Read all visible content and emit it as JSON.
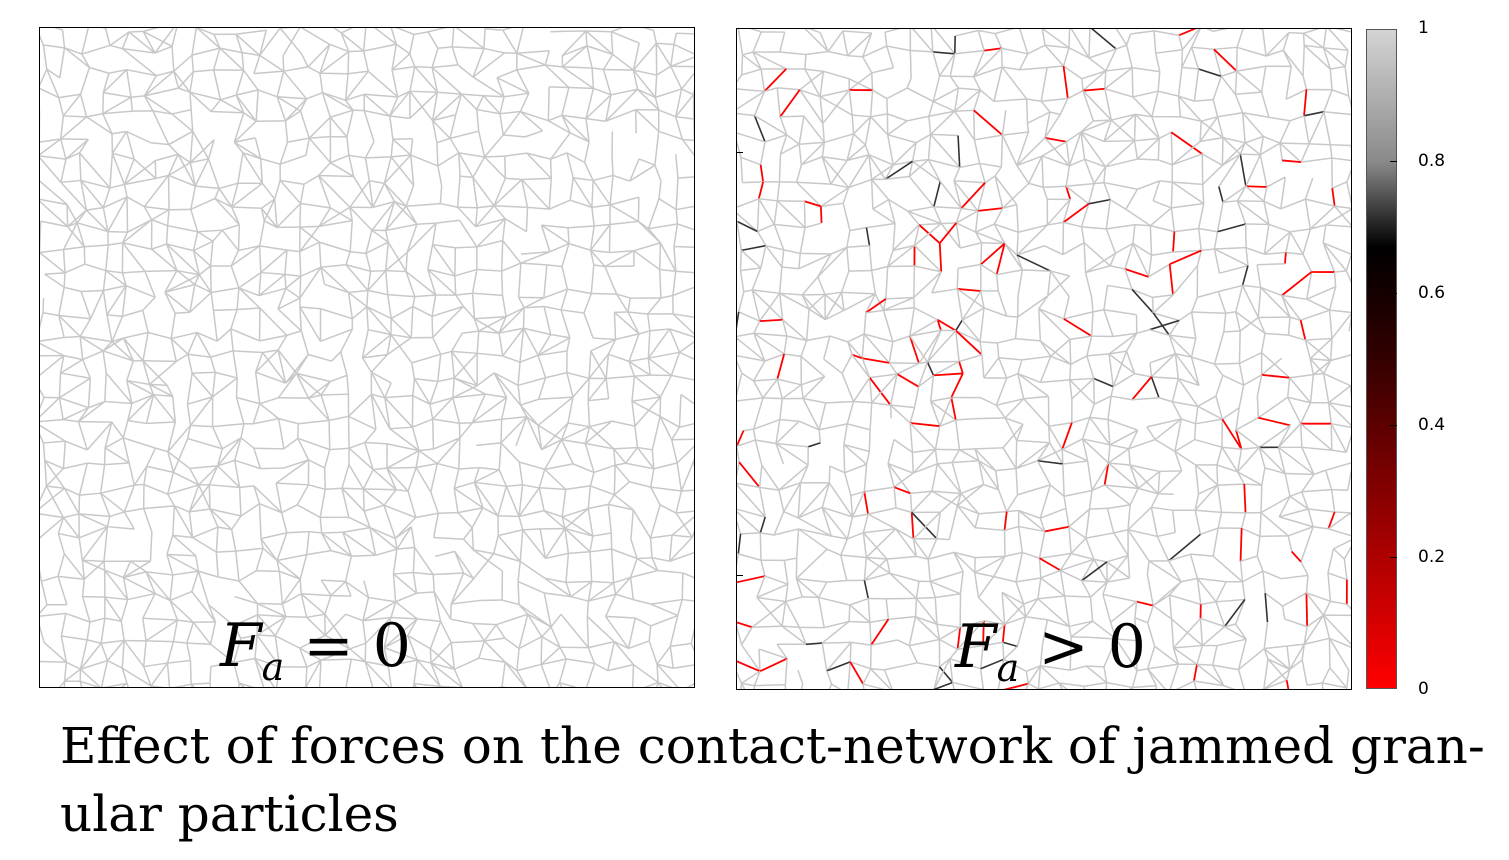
{
  "panels": {
    "left": {
      "label_symbol": "F",
      "label_subscript": "a",
      "label_relation": " = 0"
    },
    "right": {
      "label_symbol": "F",
      "label_subscript": "a",
      "label_relation": " > 0"
    }
  },
  "colorbar": {
    "ticks": [
      "1",
      "0.8",
      "0.6",
      "0.4",
      "0.2",
      "0"
    ],
    "colors": {
      "top": "#d4d4d4",
      "mid": "#000000",
      "bottom": "#ff0000"
    }
  },
  "network_colors": {
    "base_edge": "#c8c8c8",
    "dark_edge": "#333333",
    "red_edge": "#ff0000"
  },
  "caption": "Effect of forces on the contact-network of jammed gran-\nular particles"
}
